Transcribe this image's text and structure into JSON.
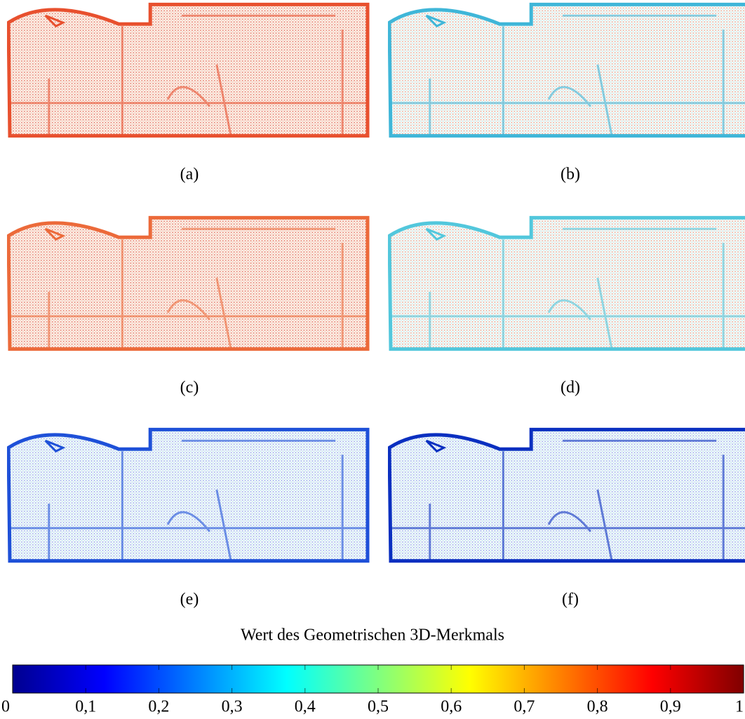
{
  "panels": [
    {
      "label": "(a)"
    },
    {
      "label": "(b)"
    },
    {
      "label": "(c)"
    },
    {
      "label": "(d)"
    },
    {
      "label": "(e)"
    },
    {
      "label": "(f)"
    }
  ],
  "colorbar": {
    "title": "Wert des Geometrischen 3D-Merkmals",
    "lim": [
      0,
      1
    ],
    "ticks": [
      0,
      {
        "value": 0.1,
        "label": "0,1"
      },
      {
        "value": 0.2,
        "label": "0,2"
      },
      {
        "value": 0.3,
        "label": "0,3"
      },
      {
        "value": 0.4,
        "label": "0,4"
      },
      {
        "value": 0.5,
        "label": "0,5"
      },
      {
        "value": 0.6,
        "label": "0,6"
      },
      {
        "value": 0.7,
        "label": "0,7"
      },
      {
        "value": 0.8,
        "label": "0,8"
      },
      {
        "value": 0.9,
        "label": "0,9"
      },
      1
    ]
  }
}
